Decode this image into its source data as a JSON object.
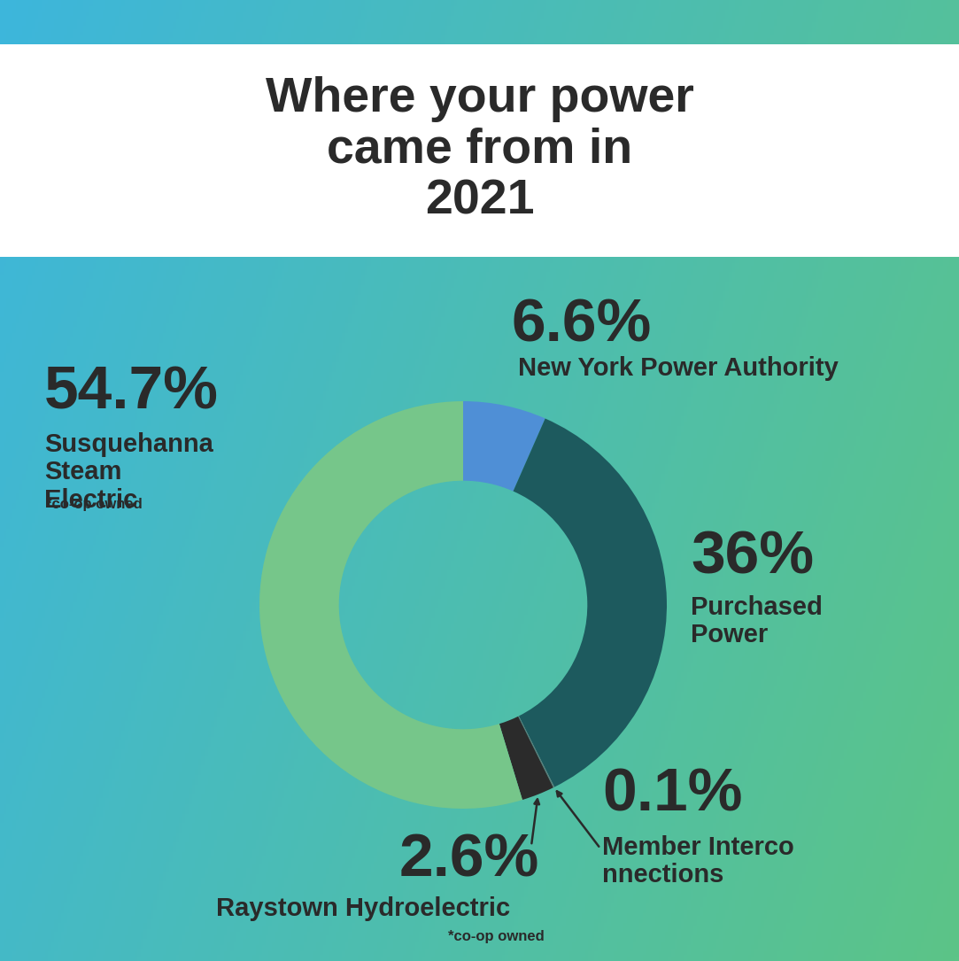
{
  "chart_data": {
    "type": "pie",
    "title": "Where your power came from in 2021",
    "categories": [
      "New York Power Authority",
      "Purchased Power",
      "Member Interconnections",
      "Raystown Hydroelectric",
      "Susquehanna Steam Electric"
    ],
    "values": [
      6.6,
      36,
      0.1,
      2.6,
      54.7
    ],
    "value_labels": [
      "6.6%",
      "36%",
      "0.1%",
      "2.6%",
      "54.7%"
    ],
    "colors": [
      "#4f8fd6",
      "#1d5a5e",
      "#5f7a7a",
      "#2b2b2b",
      "#76c68a"
    ],
    "annotations": [
      {
        "category": "Raystown Hydroelectric",
        "text": "*co-op owned"
      },
      {
        "category": "Susquehanna Steam Electric",
        "text": "*co-op owned"
      }
    ]
  }
}
